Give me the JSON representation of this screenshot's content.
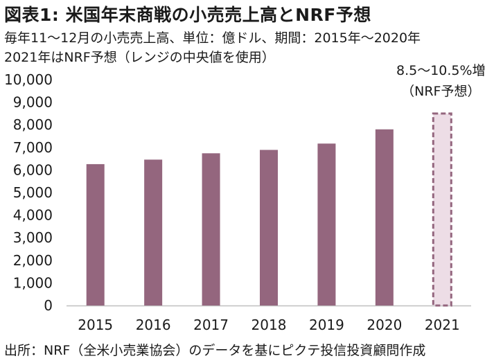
{
  "header": {
    "title": "図表1: 米国年末商戦の小売売上高とNRF予想",
    "subtitle_line1": "毎年11～12月の小売売上高、単位：億ドル、期間：2015年～2020年",
    "subtitle_line2": "2021年はNRF予想（レンジの中央値を使用）"
  },
  "footer": {
    "source": "出所：NRF（全米小売業協会）のデータを基にピクテ投信投資顧問作成"
  },
  "colors": {
    "bar": "#94667e",
    "forecast_fill": "#eddde6",
    "forecast_border": "#94667e",
    "axis": "#bfbfbf"
  },
  "chart_data": {
    "type": "bar",
    "categories": [
      "2015",
      "2016",
      "2017",
      "2018",
      "2019",
      "2020",
      "2021"
    ],
    "values": [
      6260,
      6460,
      6740,
      6890,
      7170,
      7800,
      8500
    ],
    "forecast_index": 6,
    "ylim": [
      0,
      10000
    ],
    "yticks": [
      "0",
      "1,000",
      "2,000",
      "3,000",
      "4,000",
      "5,000",
      "6,000",
      "7,000",
      "8,000",
      "9,000",
      "10,000"
    ],
    "annotation_line1": "8.5～10.5%増",
    "annotation_line2": "（NRF予想）",
    "grid": false
  }
}
